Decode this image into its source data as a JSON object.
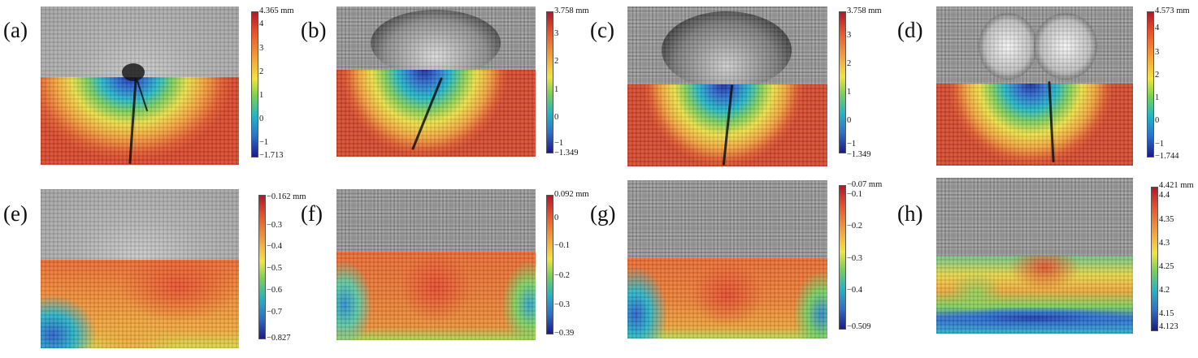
{
  "panels": [
    {
      "label": "(a)",
      "top": "4.365 mm",
      "ticks": [
        "4",
        "3",
        "2",
        "1",
        "0",
        "−1"
      ],
      "bottom": "−1.713"
    },
    {
      "label": "(b)",
      "top": "3.758 mm",
      "ticks": [
        "3",
        "2",
        "1",
        "0",
        "−1"
      ],
      "bottom": "−1.349"
    },
    {
      "label": "(c)",
      "top": "3.758 mm",
      "ticks": [
        "3",
        "2",
        "1",
        "0",
        "−1"
      ],
      "bottom": "−1.349"
    },
    {
      "label": "(d)",
      "top": "4.573 mm",
      "ticks": [
        "4",
        "3",
        "2",
        "1",
        "0",
        "−1"
      ],
      "bottom": "−1.744"
    },
    {
      "label": "(e)",
      "top": "−0.162 mm",
      "ticks": [
        "−0.3",
        "−0.4",
        "−0.5",
        "−0.6",
        "−0.7"
      ],
      "bottom": "−0.827"
    },
    {
      "label": "(f)",
      "top": "0.092 mm",
      "ticks": [
        "0",
        "−0.1",
        "−0.2",
        "−0.3"
      ],
      "bottom": "−0.39"
    },
    {
      "label": "(g)",
      "top": "−0.07 mm",
      "ticks": [
        "−0.1",
        "−0.2",
        "−0.3",
        "−0.4"
      ],
      "bottom": "−0.509"
    },
    {
      "label": "(h)",
      "top": "4.421 mm",
      "ticks": [
        "4.4",
        "4.35",
        "4.3",
        "4.25",
        "4.2",
        "4.15"
      ],
      "bottom": "4.123"
    }
  ]
}
